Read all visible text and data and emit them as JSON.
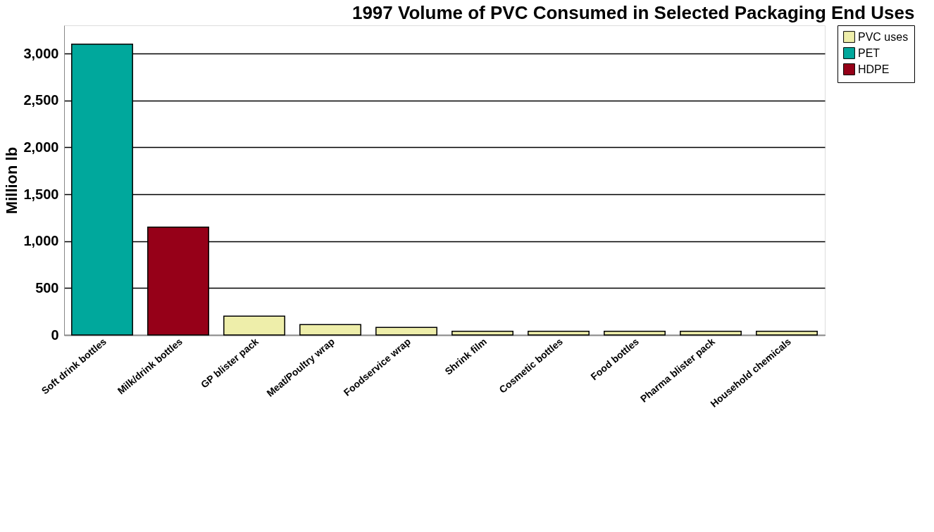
{
  "chart_data": {
    "type": "bar",
    "title": "1997 Volume of PVC Consumed in Selected Packaging End Uses",
    "ylabel": "Million lb",
    "categories": [
      "Soft drink bottles",
      "Milk/drink bottles",
      "GP blister pack",
      "Meat/Poultry wrap",
      "Foodservice wrap",
      "Shrink film",
      "Cosmetic bottles",
      "Food bottles",
      "Pharma blister pack",
      "Household chemicals"
    ],
    "series": [
      {
        "name": "PVC uses",
        "color": "#eeeeaa",
        "values": [
          null,
          null,
          200,
          110,
          80,
          40,
          40,
          40,
          40,
          40
        ]
      },
      {
        "name": "PET",
        "color": "#00a89c",
        "values": [
          3100,
          null,
          null,
          null,
          null,
          null,
          null,
          null,
          null,
          null
        ]
      },
      {
        "name": "HDPE",
        "color": "#960018",
        "values": [
          null,
          1150,
          null,
          null,
          null,
          null,
          null,
          null,
          null,
          null
        ]
      }
    ],
    "ylim": [
      0,
      3300
    ],
    "yticks": [
      {
        "value": 0,
        "label": "0"
      },
      {
        "value": 500,
        "label": "500"
      },
      {
        "value": 1000,
        "label": "1,000"
      },
      {
        "value": 1500,
        "label": "1,500"
      },
      {
        "value": 2000,
        "label": "2,000"
      },
      {
        "value": 2500,
        "label": "2,500"
      },
      {
        "value": 3000,
        "label": "3,000"
      }
    ],
    "grid": "y",
    "legend": "right"
  }
}
